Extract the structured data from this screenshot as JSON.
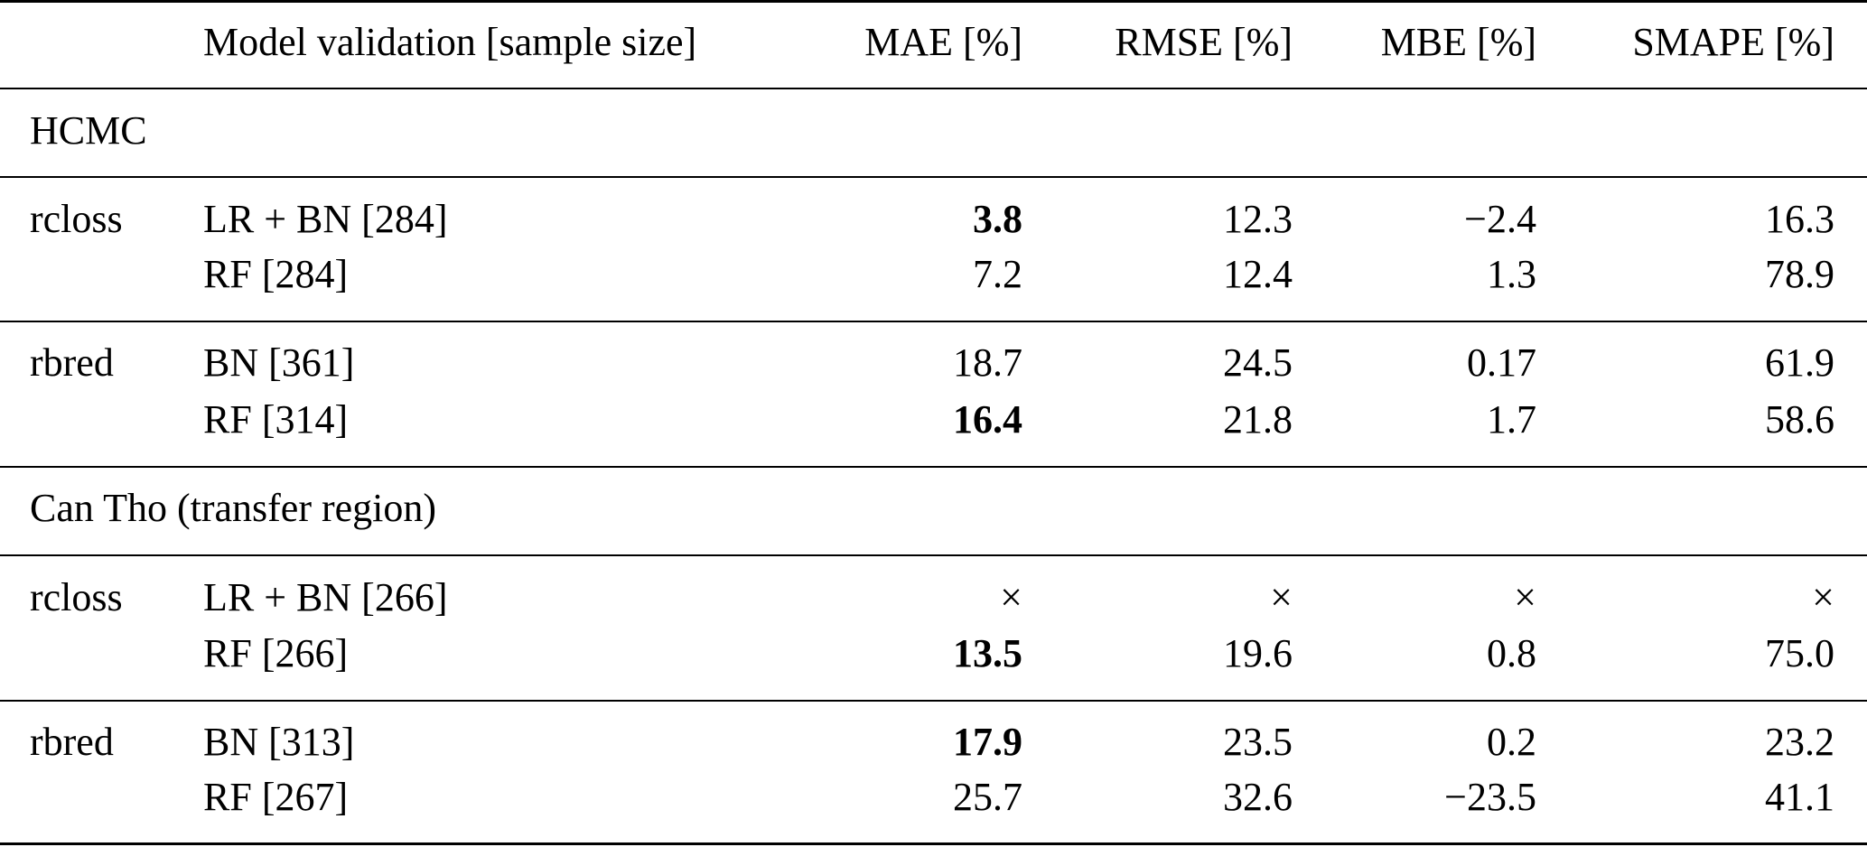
{
  "header": {
    "model": "Model validation [sample size]",
    "mae": "MAE [%]",
    "rmse": "RMSE [%]",
    "mbe": "MBE [%]",
    "smape": "SMAPE [%]"
  },
  "sections": [
    {
      "title": "HCMC",
      "groups": [
        {
          "target": "rcloss",
          "rows": [
            {
              "model": "LR + BN [284]",
              "mae": "3.8",
              "mae_bold": true,
              "rmse": "12.3",
              "mbe": "−2.4",
              "smape": "16.3"
            },
            {
              "model": "RF [284]",
              "mae": "7.2",
              "mae_bold": false,
              "rmse": "12.4",
              "mbe": "1.3",
              "smape": "78.9"
            }
          ]
        },
        {
          "target": "rbred",
          "rows": [
            {
              "model": "BN [361]",
              "mae": "18.7",
              "mae_bold": false,
              "rmse": "24.5",
              "mbe": "0.17",
              "smape": "61.9"
            },
            {
              "model": "RF [314]",
              "mae": "16.4",
              "mae_bold": true,
              "rmse": "21.8",
              "mbe": "1.7",
              "smape": "58.6"
            }
          ]
        }
      ]
    },
    {
      "title": "Can Tho (transfer region)",
      "groups": [
        {
          "target": "rcloss",
          "rows": [
            {
              "model": "LR + BN [266]",
              "mae": "×",
              "mae_bold": false,
              "rmse": "×",
              "mbe": "×",
              "smape": "×"
            },
            {
              "model": "RF [266]",
              "mae": "13.5",
              "mae_bold": true,
              "rmse": "19.6",
              "mbe": "0.8",
              "smape": "75.0"
            }
          ]
        },
        {
          "target": "rbred",
          "rows": [
            {
              "model": "BN [313]",
              "mae": "17.9",
              "mae_bold": true,
              "rmse": "23.5",
              "mbe": "0.2",
              "smape": "23.2"
            },
            {
              "model": "RF [267]",
              "mae": "25.7",
              "mae_bold": false,
              "rmse": "32.6",
              "mbe": "−23.5",
              "smape": "41.1"
            }
          ]
        }
      ]
    }
  ]
}
